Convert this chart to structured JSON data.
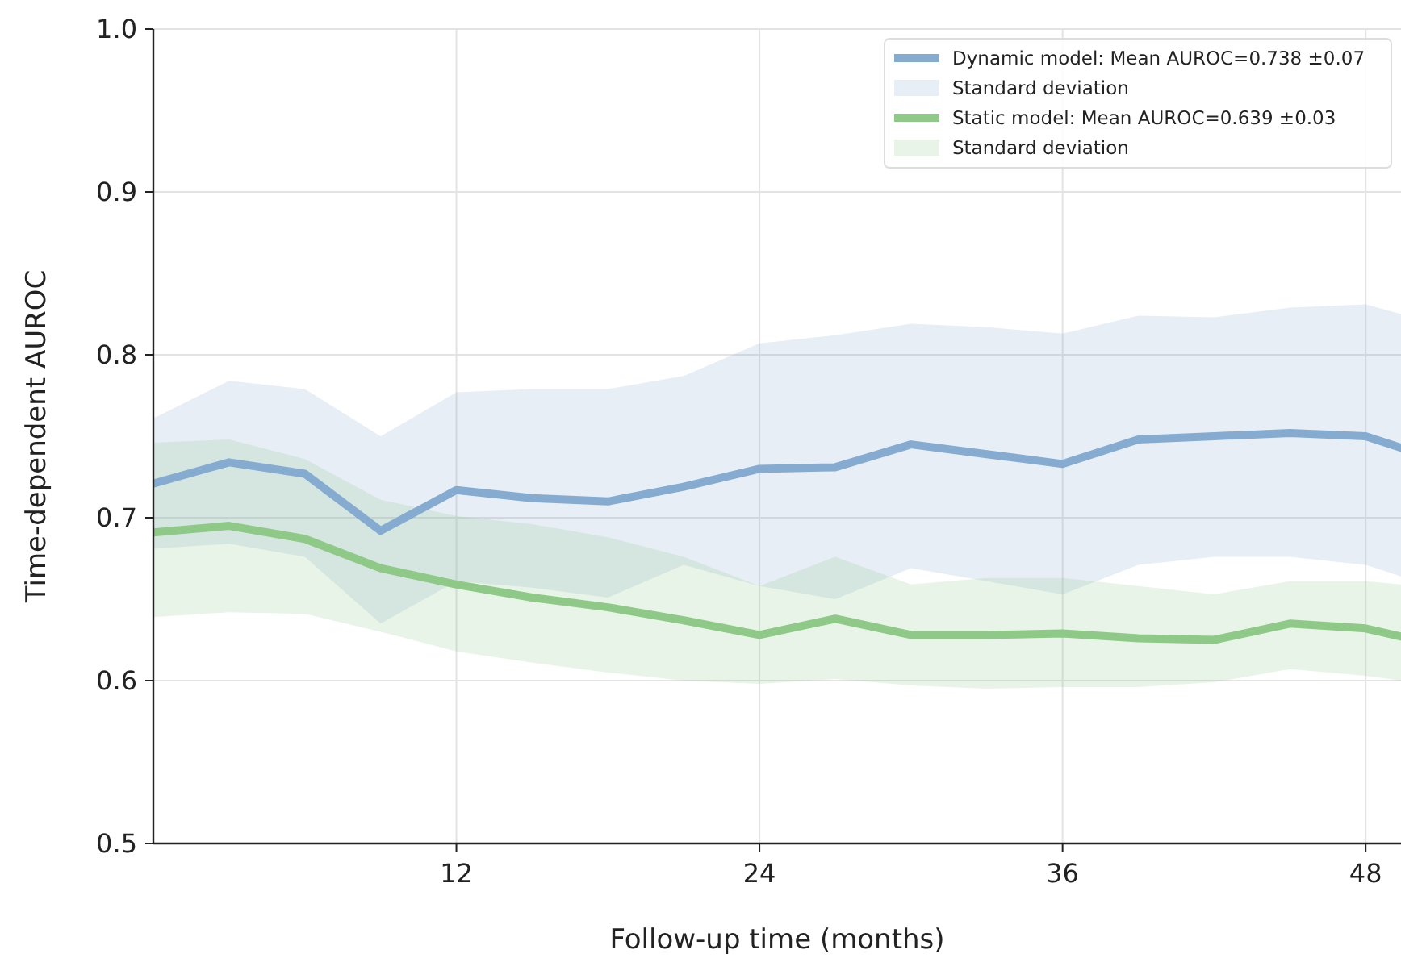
{
  "chart_data": {
    "type": "line",
    "xlabel": "Follow-up time (months)",
    "ylabel": "Time-dependent AUROC",
    "x": [
      0,
      3,
      6,
      9,
      12,
      15,
      18,
      21,
      24,
      27,
      30,
      33,
      36,
      39,
      42,
      45,
      48,
      49.4
    ],
    "xlim": [
      0,
      49.4
    ],
    "xticks": [
      12,
      24,
      36,
      48
    ],
    "ylim": [
      0.5,
      1.0
    ],
    "yticks": [
      {
        "value": 0.5,
        "label": "0.5"
      },
      {
        "value": 0.6,
        "label": "0.6"
      },
      {
        "value": 0.7,
        "label": "0.7"
      },
      {
        "value": 0.8,
        "label": "0.8"
      },
      {
        "value": 0.9,
        "label": "0.9"
      },
      {
        "value": 1.0,
        "label": "1.0"
      }
    ],
    "grid": true,
    "legend": "top right",
    "line_style": "solid",
    "marker": "none",
    "annotations": [
      "Standard deviation",
      "Standard deviation"
    ],
    "series": [
      {
        "name": "Dynamic model: Mean AUROC=0.738 ±0.07",
        "color": "#86abd0",
        "values": [
          0.721,
          0.734,
          0.727,
          0.692,
          0.717,
          0.712,
          0.71,
          0.719,
          0.73,
          0.731,
          0.745,
          0.739,
          0.733,
          0.748,
          0.75,
          0.752,
          0.75,
          0.743
        ],
        "upper": [
          0.761,
          0.784,
          0.779,
          0.75,
          0.777,
          0.779,
          0.779,
          0.787,
          0.807,
          0.812,
          0.819,
          0.817,
          0.813,
          0.824,
          0.823,
          0.829,
          0.831,
          0.825
        ],
        "lower": [
          0.681,
          0.684,
          0.676,
          0.635,
          0.661,
          0.657,
          0.651,
          0.671,
          0.658,
          0.65,
          0.669,
          0.661,
          0.653,
          0.671,
          0.676,
          0.676,
          0.671,
          0.664
        ]
      },
      {
        "name": "Static model: Mean AUROC=0.639 ±0.03",
        "color": "#8ec987",
        "values": [
          0.691,
          0.695,
          0.687,
          0.669,
          0.659,
          0.651,
          0.645,
          0.637,
          0.628,
          0.638,
          0.628,
          0.628,
          0.629,
          0.626,
          0.625,
          0.635,
          0.632,
          0.627
        ],
        "upper": [
          0.746,
          0.748,
          0.736,
          0.711,
          0.701,
          0.696,
          0.688,
          0.676,
          0.658,
          0.676,
          0.659,
          0.663,
          0.663,
          0.658,
          0.653,
          0.661,
          0.661,
          0.659
        ],
        "lower": [
          0.639,
          0.642,
          0.641,
          0.63,
          0.618,
          0.611,
          0.605,
          0.6,
          0.598,
          0.601,
          0.597,
          0.595,
          0.596,
          0.596,
          0.599,
          0.607,
          0.603,
          0.6
        ]
      }
    ]
  }
}
